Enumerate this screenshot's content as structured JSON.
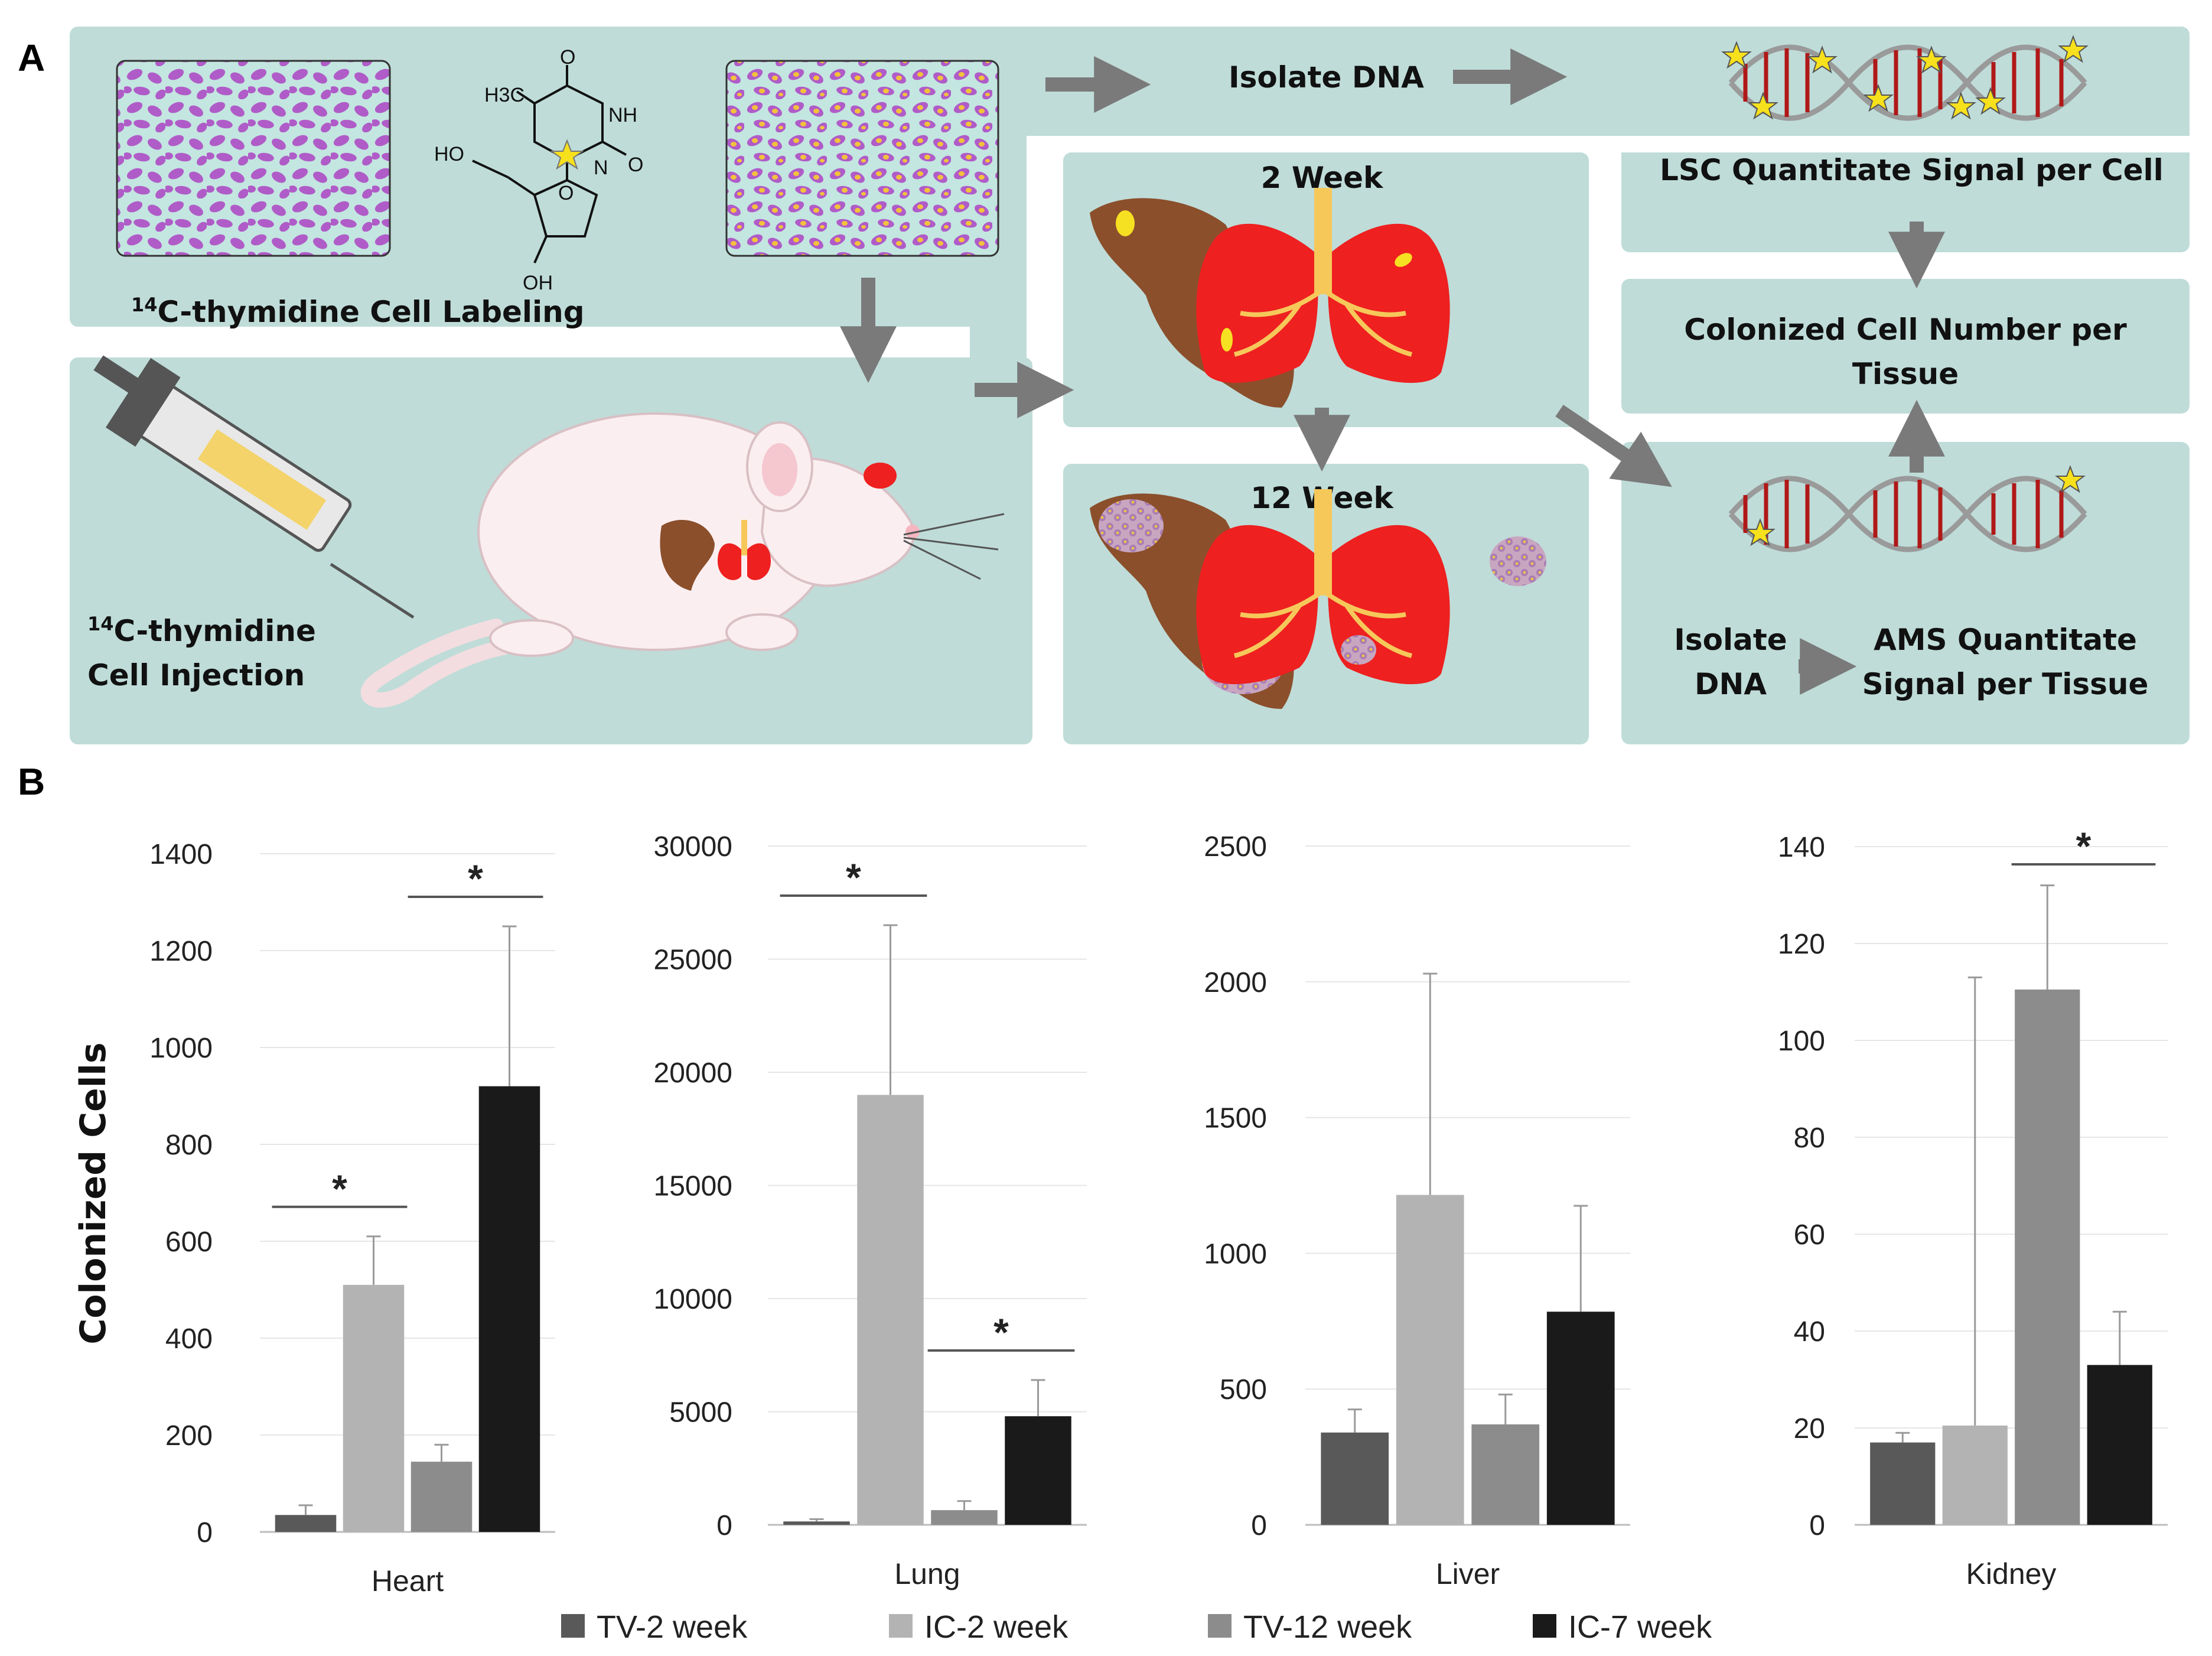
{
  "panels": {
    "a": "A",
    "b": "B"
  },
  "diagram": {
    "labeling_sup": "14",
    "labeling_text": "C-thymidine Cell Labeling",
    "injection_sup": "14",
    "injection_text_1": "C-thymidine",
    "injection_text_2": "Cell Injection",
    "isolate_dna_top": "Isolate DNA",
    "lsc_text": "LSC Quantitate Signal per Cell",
    "colonized_1": "Colonized Cell Number per",
    "colonized_2": "Tissue",
    "week2": "2 Week",
    "week12": "12 Week",
    "isolate_1": "Isolate",
    "isolate_2": "DNA",
    "ams_1": "AMS Quantitate",
    "ams_2": "Signal per Tissue",
    "chem": {
      "ch3": "H3C",
      "o_top": "O",
      "nh": "NH",
      "n": "N",
      "o_right": "O",
      "ho": "HO",
      "o_ring": "O",
      "oh": "OH"
    }
  },
  "colors": {
    "panel_bg": "#bfdcd8",
    "arrow": "#7a7a7a",
    "tissue_brown": "#8b4f2c",
    "lung_red": "#ee2020",
    "series": [
      "#595959",
      "#b3b3b3",
      "#8c8c8c",
      "#1a1a1a"
    ]
  },
  "chart_data": [
    {
      "type": "bar",
      "category": "Heart",
      "ylabel": "Colonized Cells",
      "ylim": [
        0,
        1400
      ],
      "yticks": [
        0,
        200,
        400,
        600,
        800,
        1000,
        1200,
        1400
      ],
      "series": [
        {
          "name": "TV-2 week",
          "value": 35,
          "err": 20
        },
        {
          "name": "IC-2 week",
          "value": 510,
          "err": 100
        },
        {
          "name": "TV-12 week",
          "value": 145,
          "err": 35
        },
        {
          "name": "IC-7 week",
          "value": 920,
          "err": 330
        }
      ],
      "significance": [
        {
          "from": 0,
          "to": 1,
          "label": "*"
        },
        {
          "from": 2,
          "to": 3,
          "label": "*"
        }
      ]
    },
    {
      "type": "bar",
      "category": "Lung",
      "ylim": [
        0,
        30000
      ],
      "yticks": [
        0,
        5000,
        10000,
        15000,
        20000,
        25000,
        30000
      ],
      "series": [
        {
          "name": "TV-2 week",
          "value": 150,
          "err": 100
        },
        {
          "name": "IC-2 week",
          "value": 19000,
          "err": 7500
        },
        {
          "name": "TV-12 week",
          "value": 650,
          "err": 400
        },
        {
          "name": "IC-7 week",
          "value": 4800,
          "err": 1600
        }
      ],
      "significance": [
        {
          "from": 0,
          "to": 1,
          "label": "*"
        },
        {
          "from": 2,
          "to": 3,
          "label": "*"
        }
      ]
    },
    {
      "type": "bar",
      "category": "Liver",
      "ylim": [
        0,
        2500
      ],
      "yticks": [
        0,
        500,
        1000,
        1500,
        2000,
        2500
      ],
      "series": [
        {
          "name": "TV-2 week",
          "value": 340,
          "err": 85
        },
        {
          "name": "IC-2 week",
          "value": 1215,
          "err": 815
        },
        {
          "name": "TV-12 week",
          "value": 370,
          "err": 110
        },
        {
          "name": "IC-7 week",
          "value": 785,
          "err": 390
        }
      ],
      "significance": []
    },
    {
      "type": "bar",
      "category": "Kidney",
      "ylim": [
        0,
        140
      ],
      "yticks": [
        0,
        20,
        40,
        60,
        80,
        100,
        120,
        140
      ],
      "series": [
        {
          "name": "TV-2 week",
          "value": 17,
          "err": 2
        },
        {
          "name": "IC-2 week",
          "value": 20.5,
          "err": 92.5
        },
        {
          "name": "TV-12 week",
          "value": 110.5,
          "err": 21.5
        },
        {
          "name": "IC-7 week",
          "value": 33,
          "err": 11
        }
      ],
      "significance": [
        {
          "from": 2,
          "to": 3,
          "label": "*"
        }
      ]
    }
  ],
  "legend": [
    "TV-2 week",
    "IC-2 week",
    "TV-12 week",
    "IC-7 week"
  ]
}
